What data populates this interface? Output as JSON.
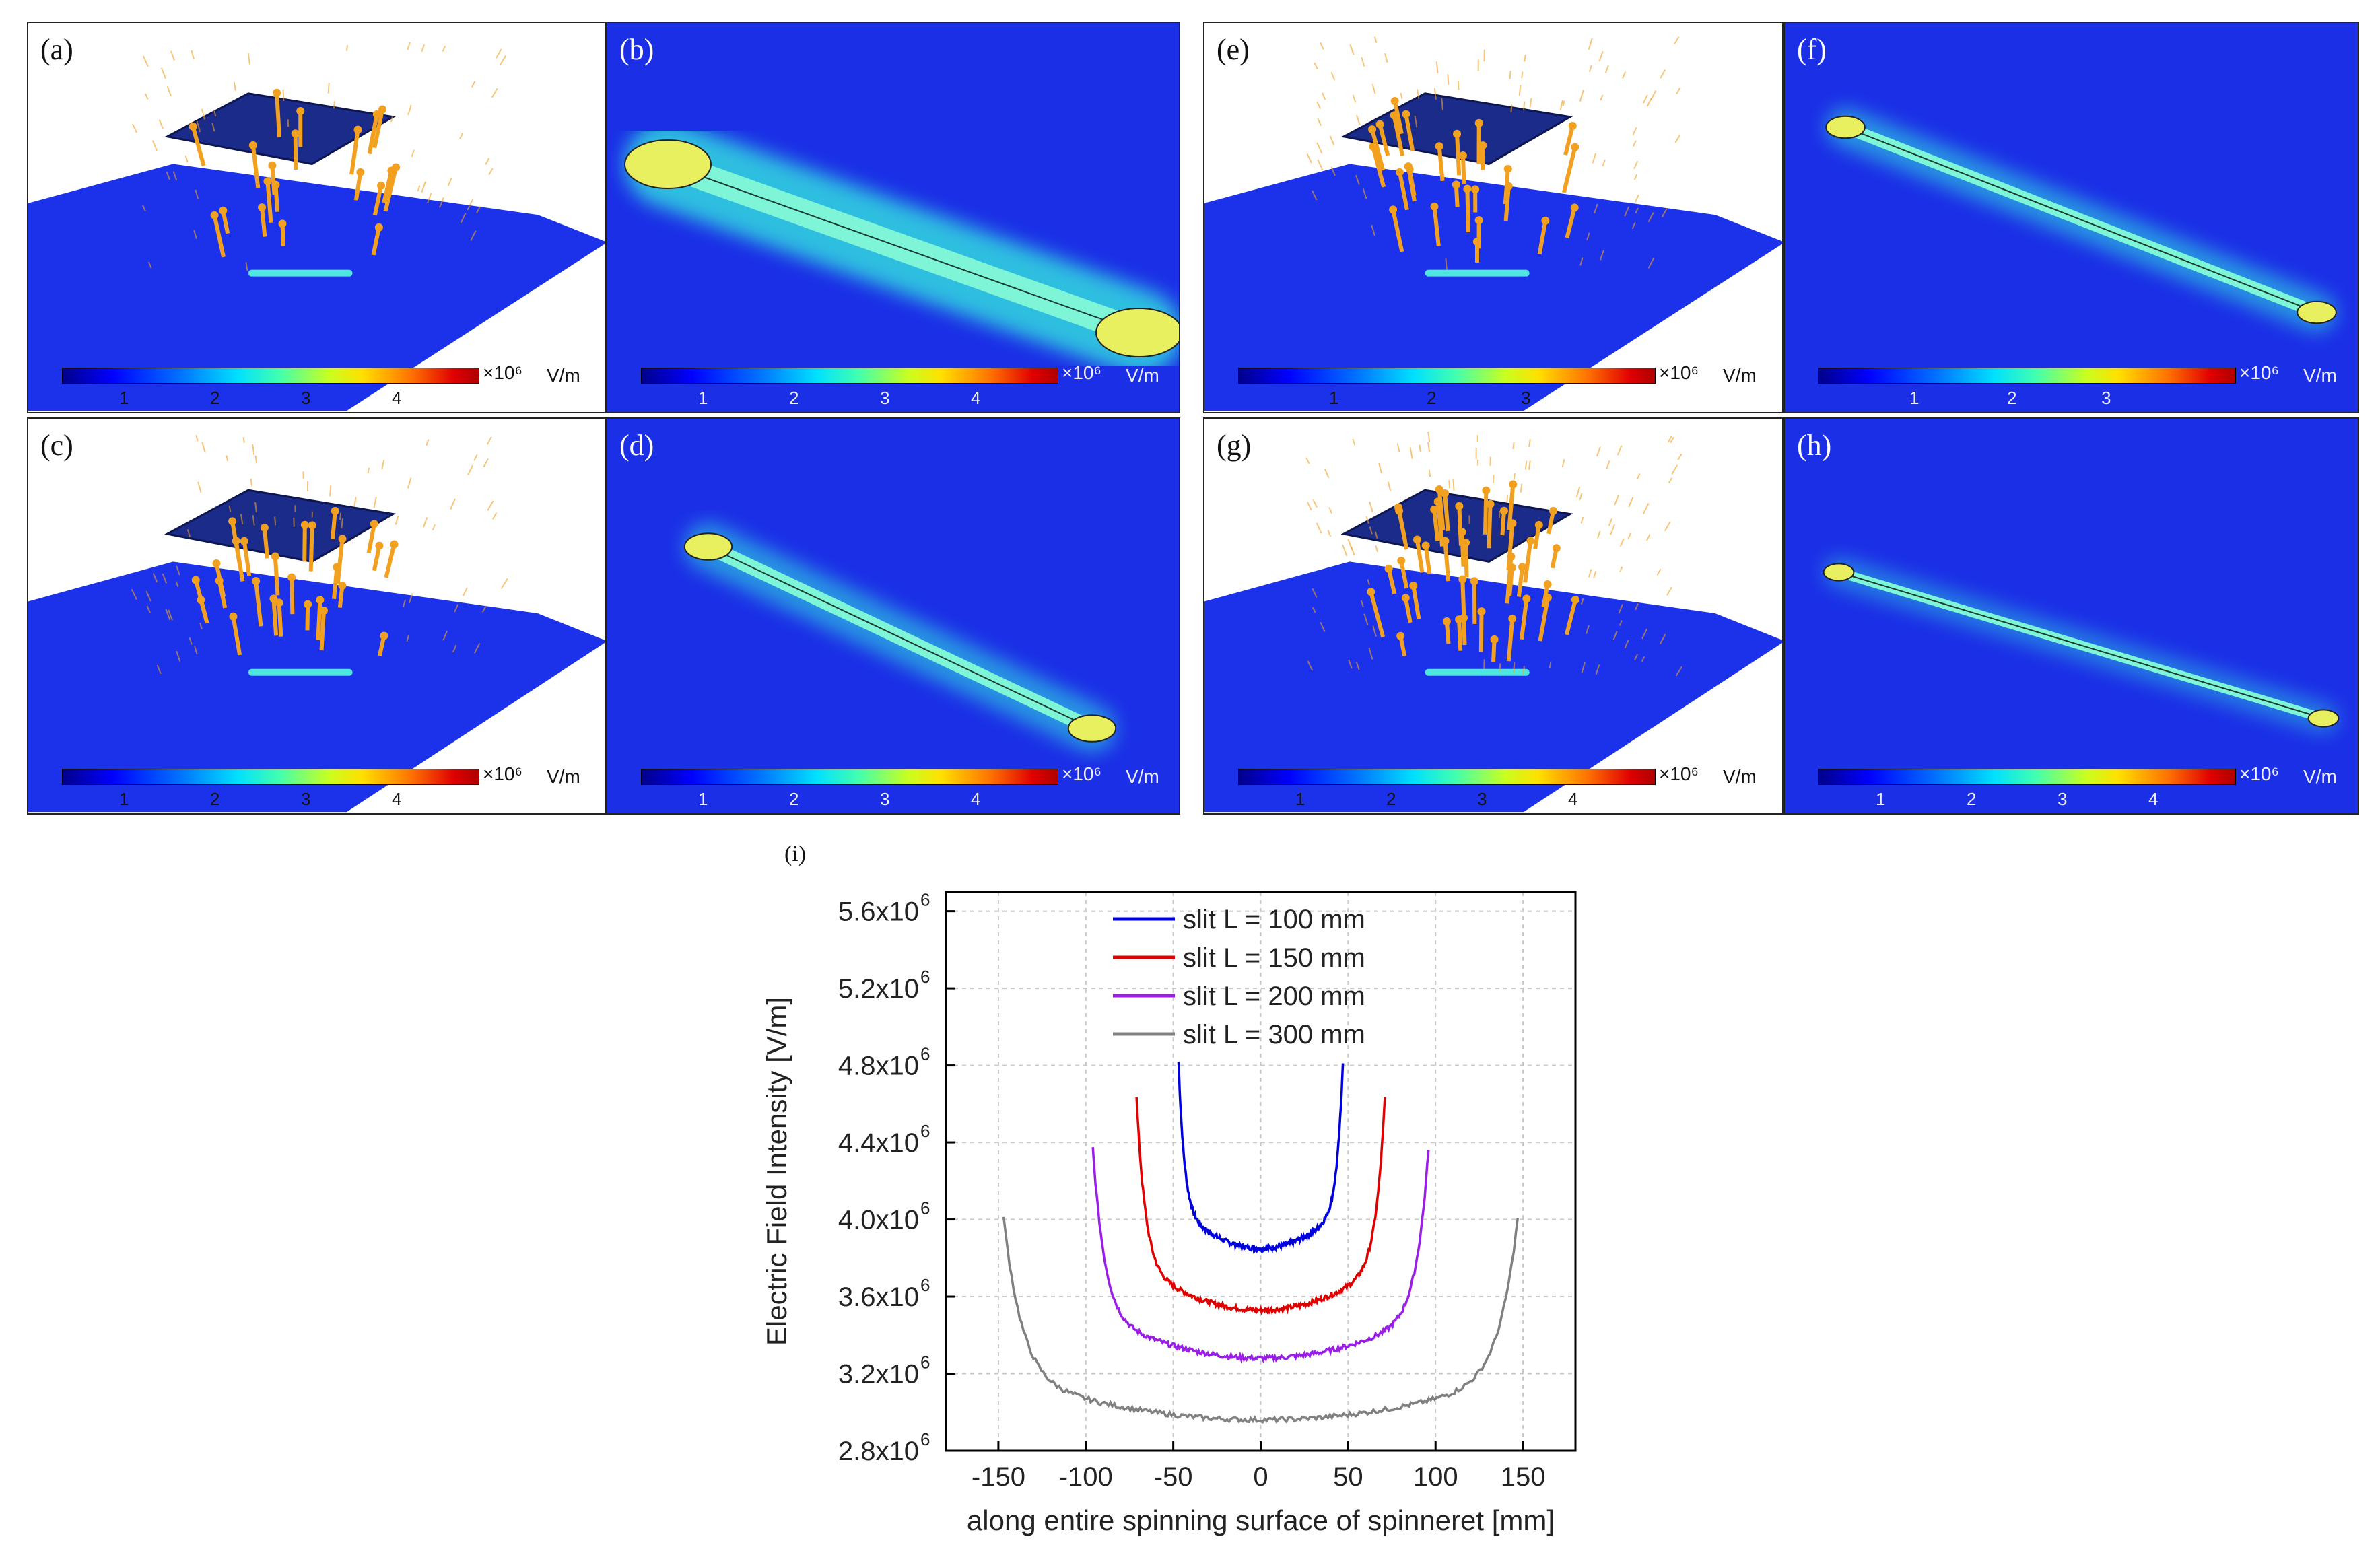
{
  "panels": [
    {
      "id": "a",
      "label": "(a)",
      "type": "perspective",
      "cbar_ticks": [
        "1",
        "2",
        "3",
        "4"
      ],
      "cbar_unit": "×10⁶",
      "cbar_unit2": "V/m"
    },
    {
      "id": "b",
      "label": "(b)",
      "type": "topview",
      "cbar_ticks": [
        "1",
        "2",
        "3",
        "4"
      ],
      "cbar_unit": "×10⁶",
      "cbar_unit2": "V/m"
    },
    {
      "id": "c",
      "label": "(c)",
      "type": "perspective",
      "cbar_ticks": [
        "1",
        "2",
        "3",
        "4"
      ],
      "cbar_unit": "×10⁶",
      "cbar_unit2": "V/m"
    },
    {
      "id": "d",
      "label": "(d)",
      "type": "topview",
      "cbar_ticks": [
        "1",
        "2",
        "3",
        "4"
      ],
      "cbar_unit": "×10⁶",
      "cbar_unit2": "V/m"
    },
    {
      "id": "e",
      "label": "(e)",
      "type": "perspective",
      "cbar_ticks": [
        "1",
        "2",
        "3"
      ],
      "cbar_unit": "×10⁶",
      "cbar_unit2": "V/m"
    },
    {
      "id": "f",
      "label": "(f)",
      "type": "topview",
      "cbar_ticks": [
        "1",
        "2",
        "3"
      ],
      "cbar_unit": "×10⁶",
      "cbar_unit2": "V/m"
    },
    {
      "id": "g",
      "label": "(g)",
      "type": "perspective",
      "cbar_ticks": [
        "1",
        "2",
        "3",
        "4"
      ],
      "cbar_unit": "×10⁶",
      "cbar_unit2": "V/m"
    },
    {
      "id": "h",
      "label": "(h)",
      "type": "topview",
      "cbar_ticks": [
        "1",
        "2",
        "3",
        "4"
      ],
      "cbar_unit": "×10⁶",
      "cbar_unit2": "V/m"
    }
  ],
  "colors": {
    "field_bg": "#1b2fe6",
    "plate": "#1a2a80",
    "arrow": "#f2a020",
    "glow": "#40e0c0"
  },
  "chart_data": {
    "type": "line",
    "panel_label": "(i)",
    "xlabel": "along entire spinning surface of spinneret [mm]",
    "ylabel": "Electric Field Intensity [V/m]",
    "xlim": [
      -180,
      180
    ],
    "ylim": [
      2.8,
      5.7
    ],
    "xticks": [
      -150,
      -100,
      -50,
      0,
      50,
      100,
      150
    ],
    "xtick_labels": [
      "-150",
      "-100",
      "-50",
      "0",
      "50",
      "100",
      "150"
    ],
    "yticks": [
      2.8,
      3.2,
      3.6,
      4.0,
      4.4,
      4.8,
      5.2,
      5.6
    ],
    "ytick_labels": [
      "2.8x10",
      "3.2x10",
      "3.6x10",
      "4.0x10",
      "4.4x10",
      "4.8x10",
      "5.2x10",
      "5.6x10"
    ],
    "ytick_exp": "6",
    "grid": true,
    "legend_position": "top-center",
    "series": [
      {
        "name": "slit L = 100 mm",
        "color": "#0000dd",
        "half_length": 47,
        "min": 3.85,
        "max": 4.82
      },
      {
        "name": "slit L = 150 mm",
        "color": "#e00000",
        "half_length": 71,
        "min": 3.53,
        "max": 4.63
      },
      {
        "name": "slit L = 200 mm",
        "color": "#9b1ee8",
        "half_length": 96,
        "min": 3.28,
        "max": 4.37
      },
      {
        "name": "slit L = 300 mm",
        "color": "#808080",
        "half_length": 147,
        "min": 2.96,
        "max": 4.01
      }
    ]
  }
}
